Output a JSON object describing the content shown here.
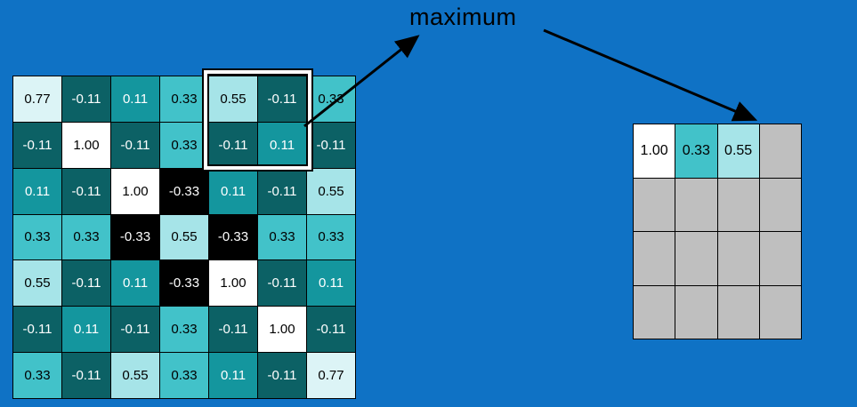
{
  "background_color": "#0f72c5",
  "label": {
    "text": "maximum"
  },
  "left_matrix": {
    "rows": [
      [
        "0.77",
        "-0.11",
        "0.11",
        "0.33",
        "0.55",
        "-0.11",
        "0.33"
      ],
      [
        "-0.11",
        "1.00",
        "-0.11",
        "0.33",
        "-0.11",
        "0.11",
        "-0.11"
      ],
      [
        "0.11",
        "-0.11",
        "1.00",
        "-0.33",
        "0.11",
        "-0.11",
        "0.55"
      ],
      [
        "0.33",
        "0.33",
        "-0.33",
        "0.55",
        "-0.33",
        "0.33",
        "0.33"
      ],
      [
        "0.55",
        "-0.11",
        "0.11",
        "-0.33",
        "1.00",
        "-0.11",
        "0.11"
      ],
      [
        "-0.11",
        "0.11",
        "-0.11",
        "0.33",
        "-0.11",
        "1.00",
        "-0.11"
      ],
      [
        "0.33",
        "-0.11",
        "0.55",
        "0.33",
        "0.11",
        "-0.11",
        "0.77"
      ]
    ]
  },
  "right_matrix": {
    "rows": [
      [
        "1.00",
        "0.33",
        "0.55",
        ""
      ],
      [
        "",
        "",
        "",
        ""
      ],
      [
        "",
        "",
        "",
        ""
      ],
      [
        "",
        "",
        "",
        ""
      ]
    ],
    "empty_cell_color": "#bfbfbf"
  },
  "value_colors": {
    "1.00": {
      "bg": "#ffffff",
      "text": "#000000"
    },
    "0.77": {
      "bg": "#dcf4f6",
      "text": "#000000"
    },
    "0.55": {
      "bg": "#a6e4e8",
      "text": "#000000"
    },
    "0.33": {
      "bg": "#42c2c9",
      "text": "#000000"
    },
    "0.11": {
      "bg": "#14969e",
      "text": "#ffffff"
    },
    "-0.11": {
      "bg": "#0c6165",
      "text": "#ffffff"
    },
    "-0.33": {
      "bg": "#000000",
      "text": "#ffffff"
    }
  },
  "arrow_color": "#000000"
}
